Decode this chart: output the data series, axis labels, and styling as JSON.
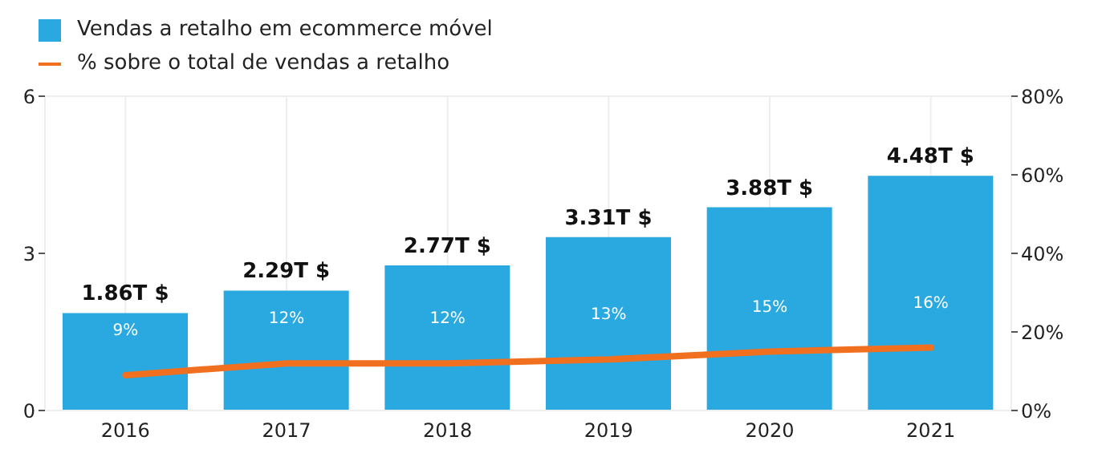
{
  "chart_data": {
    "type": "bar",
    "categories": [
      "2016",
      "2017",
      "2018",
      "2019",
      "2020",
      "2021"
    ],
    "series": [
      {
        "name": "Vendas a retalho em ecommerce móvel",
        "color": "#29a9e0",
        "values": [
          1.86,
          2.29,
          2.77,
          3.31,
          3.88,
          4.48
        ],
        "value_labels": [
          "1.86T $",
          "2.29T $",
          "2.77T $",
          "3.31T $",
          "3.88T $",
          "4.48T $"
        ]
      },
      {
        "name": "% sobre o total de vendas a retalho",
        "type": "line",
        "axis": "y2",
        "color": "#f07020",
        "values": [
          9,
          12,
          12,
          13,
          15,
          16
        ],
        "value_labels": [
          "9%",
          "12%",
          "12%",
          "13%",
          "15%",
          "16%"
        ]
      }
    ],
    "ylim": [
      0,
      6
    ],
    "yticks": [
      0,
      3,
      6
    ],
    "y2lim": [
      0,
      80
    ],
    "y2ticks": [
      {
        "value": 0,
        "label": "0%"
      },
      {
        "value": 20,
        "label": "20%"
      },
      {
        "value": 40,
        "label": "40%"
      },
      {
        "value": 60,
        "label": "60%"
      },
      {
        "value": 80,
        "label": "80%"
      }
    ],
    "grid": true,
    "legend": "top left",
    "marker": "none",
    "line_style": "solid"
  }
}
